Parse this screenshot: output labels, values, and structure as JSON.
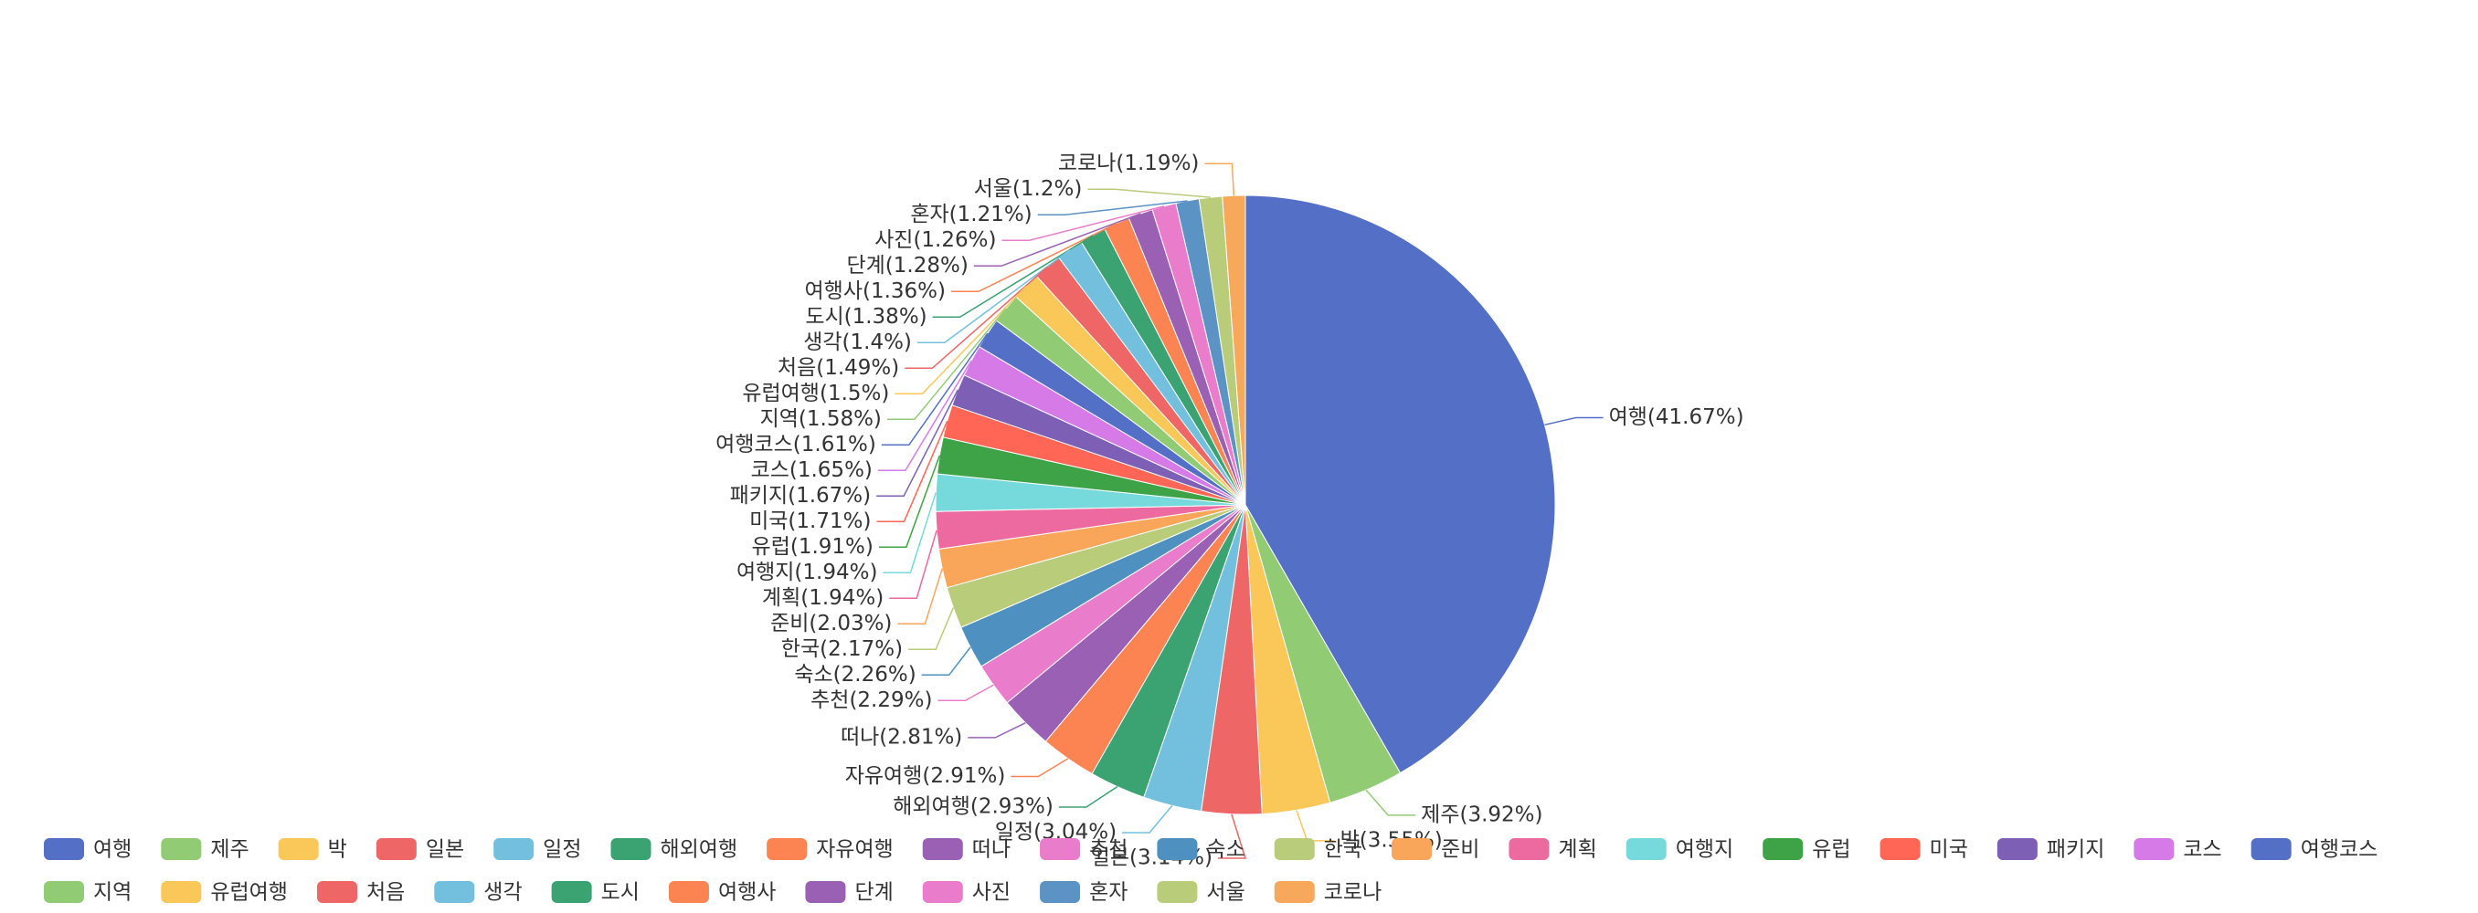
{
  "chart_data": {
    "type": "pie",
    "categories": [
      "여행",
      "제주",
      "박",
      "일본",
      "일정",
      "해외여행",
      "자유여행",
      "떠나",
      "추천",
      "숙소",
      "한국",
      "준비",
      "계획",
      "여행지",
      "유럽",
      "미국",
      "패키지",
      "코스",
      "여행코스",
      "지역",
      "유럽여행",
      "처음",
      "생각",
      "도시",
      "여행사",
      "단계",
      "사진",
      "혼자",
      "서울",
      "코로나"
    ],
    "values": [
      41.67,
      3.92,
      3.55,
      3.14,
      3.04,
      2.93,
      2.91,
      2.81,
      2.29,
      2.26,
      2.17,
      2.03,
      1.94,
      1.94,
      1.91,
      1.71,
      1.67,
      1.65,
      1.61,
      1.58,
      1.5,
      1.49,
      1.4,
      1.38,
      1.36,
      1.28,
      1.26,
      1.21,
      1.2,
      1.19
    ],
    "value_labels": [
      "여행(41.67%)",
      "제주(3.92%)",
      "박(3.55%)",
      "일본(3.14%)",
      "일정(3.04%)",
      "해외여행(2.93%)",
      "자유여행(2.91%)",
      "떠나(2.81%)",
      "추천(2.29%)",
      "숙소(2.26%)",
      "한국(2.17%)",
      "준비(2.03%)",
      "계획(1.94%)",
      "여행지(1.94%)",
      "유럽(1.91%)",
      "미국(1.71%)",
      "패키지(1.67%)",
      "코스(1.65%)",
      "여행코스(1.61%)",
      "지역(1.58%)",
      "유럽여행(1.5%)",
      "처음(1.49%)",
      "생각(1.4%)",
      "도시(1.38%)",
      "여행사(1.36%)",
      "단계(1.28%)",
      "사진(1.26%)",
      "혼자(1.21%)",
      "서울(1.2%)",
      "코로나(1.19%)"
    ],
    "colors": [
      "#5470c6",
      "#91cc75",
      "#fac858",
      "#ee6666",
      "#73c0de",
      "#3ba272",
      "#fc8452",
      "#9a60b4",
      "#ea7ccc",
      "#4e91c0",
      "#b8cc7a",
      "#f9a65a",
      "#ec6aa0",
      "#76d9dc",
      "#3ea346",
      "#ff6655",
      "#7d5fb5",
      "#d67ae8",
      "#5470c6",
      "#91cc75",
      "#fac858",
      "#ee6666",
      "#73c0de",
      "#3ba272",
      "#fc8452",
      "#9a60b4",
      "#ea7ccc",
      "#5b93c5",
      "#b9cc7a",
      "#f8a85a"
    ],
    "legend": "bottom"
  }
}
